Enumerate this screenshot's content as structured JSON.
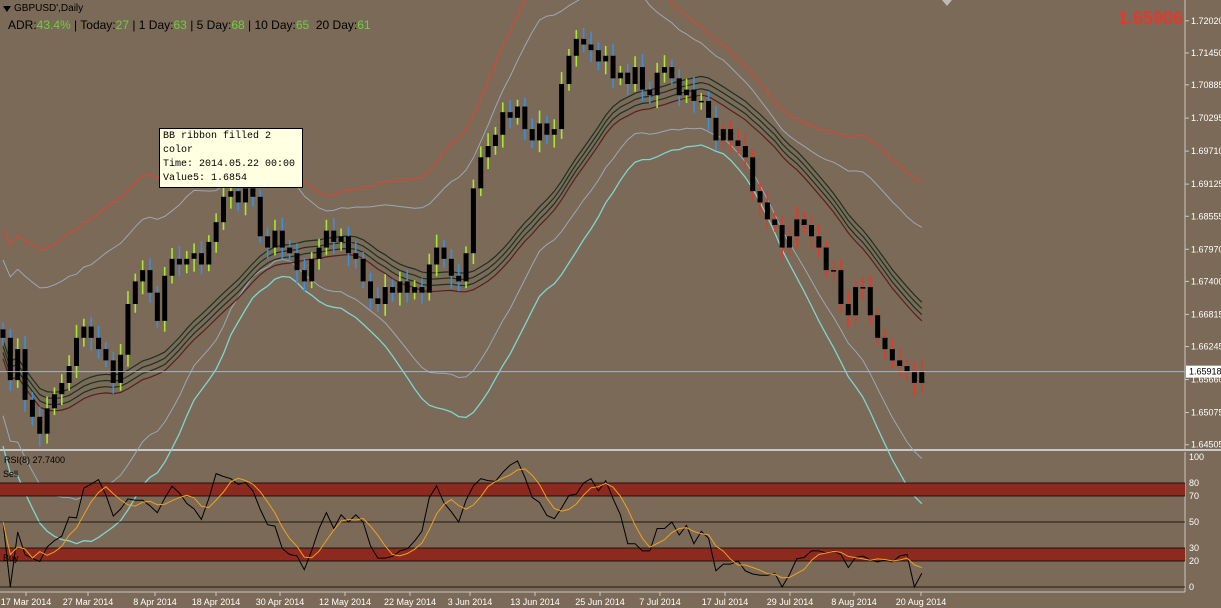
{
  "header": {
    "symbol": "GBPUSD',Daily",
    "adr_label": "ADR:",
    "adr_value": "43.4%",
    "today_label": "| Today:",
    "today_value": "27",
    "day1_label": "| 1 Day:",
    "day1_value": "63",
    "day5_label": "| 5 Day:",
    "day5_value": "68",
    "day10_label": "| 10 Day:",
    "day10_value": "65",
    "day20_label": "20 Day:",
    "day20_value": "61",
    "big_price": "1.65906"
  },
  "tooltip": {
    "line1": "BB ribbon filled 2",
    "line2": "color",
    "line3": "Time: 2014.05.22 00:00",
    "line4": "Value5: 1.6854"
  },
  "rsi_panel": {
    "title": "RSI(8) 27.7400",
    "sell_label": "Sell",
    "buy_label": "Buy"
  },
  "chart_data": [
    {
      "type": "candlestick",
      "title": "GBPUSD',Daily",
      "ylim": [
        1.645,
        1.723
      ],
      "y_ticks": [
        "1.72020",
        "1.71450",
        "1.70885",
        "1.70295",
        "1.69710",
        "1.69125",
        "1.68555",
        "1.67970",
        "1.67400",
        "1.66815",
        "1.66245",
        "1.65660",
        "1.65075",
        "1.64505"
      ],
      "current_price_label": "1.65918",
      "x_ticks": [
        "17 Mar 2014",
        "27 Mar 2014",
        "8 Apr 2014",
        "18 Apr 2014",
        "30 Apr 2014",
        "12 May 2014",
        "22 May 2014",
        "3 Jun 2014",
        "13 Jun 2014",
        "25 Jun 2014",
        "7 Jul 2014",
        "17 Jul 2014",
        "29 Jul 2014",
        "8 Aug 2014",
        "20 Aug 2014"
      ],
      "colors": {
        "up_strong": "#a6ea2e",
        "down": "#3a8fe0",
        "bear": "#e0392e",
        "body": "#000000",
        "upper_band": "#cf4a3a",
        "inner_band": "#9aa8b8",
        "lower_band": "#7fd6d0",
        "ribbon": "#1a3320"
      },
      "close": [
        1.664,
        1.6565,
        1.662,
        1.653,
        1.65,
        1.647,
        1.6515,
        1.654,
        1.656,
        1.659,
        1.664,
        1.666,
        1.664,
        1.662,
        1.66,
        1.656,
        1.661,
        1.67,
        1.674,
        1.676,
        1.672,
        1.667,
        1.675,
        1.678,
        1.677,
        1.678,
        1.679,
        1.677,
        1.681,
        1.6845,
        1.689,
        1.69,
        1.688,
        1.6905,
        1.689,
        1.682,
        1.68,
        1.683,
        1.68,
        1.679,
        1.676,
        1.674,
        1.678,
        1.68,
        1.683,
        1.681,
        1.682,
        1.679,
        1.678,
        1.674,
        1.671,
        1.67,
        1.673,
        1.672,
        1.674,
        1.672,
        1.673,
        1.672,
        1.677,
        1.68,
        1.678,
        1.675,
        1.674,
        1.679,
        1.6905,
        1.696,
        1.698,
        1.7,
        1.704,
        1.703,
        1.705,
        1.701,
        1.699,
        1.702,
        1.7,
        1.701,
        1.709,
        1.714,
        1.717,
        1.716,
        1.715,
        1.713,
        1.714,
        1.71,
        1.711,
        1.709,
        1.712,
        1.708,
        1.707,
        1.711,
        1.712,
        1.71,
        1.707,
        1.708,
        1.706,
        1.706,
        1.703,
        1.699,
        1.701,
        1.699,
        1.698,
        1.696,
        1.69,
        1.688,
        1.685,
        1.684,
        1.68,
        1.682,
        1.685,
        1.684,
        1.682,
        1.68,
        1.676,
        1.676,
        1.67,
        1.668,
        1.673,
        1.673,
        1.668,
        1.664,
        1.662,
        1.66,
        1.659,
        1.658,
        1.656,
        1.658
      ],
      "rsi_value": 27.74,
      "rsi_levels": [
        80,
        70,
        50,
        30,
        20,
        0
      ],
      "rsi_axis": [
        100,
        80,
        70,
        50,
        30,
        20,
        0
      ]
    }
  ]
}
